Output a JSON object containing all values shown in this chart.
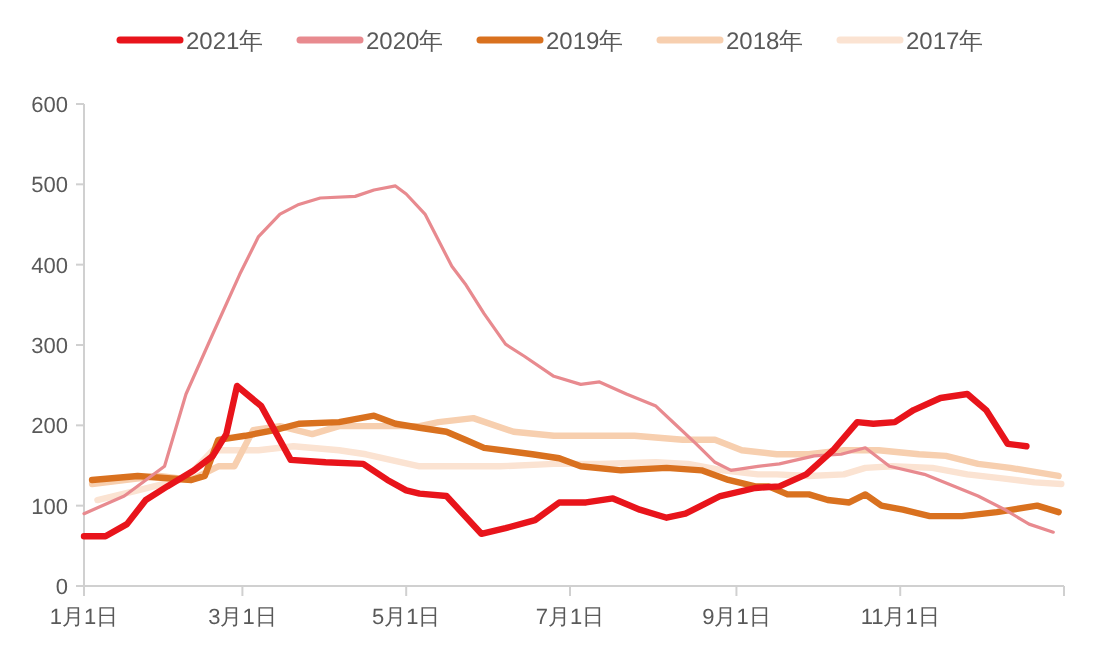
{
  "chart_data": {
    "type": "line",
    "legend": "top",
    "ylim": [
      0,
      600
    ],
    "yticks": [
      0,
      100,
      200,
      300,
      400,
      500,
      600
    ],
    "xlim": [
      "--01-01",
      "--12-31"
    ],
    "xticks": [
      {
        "value": "--01-01",
        "label": "1月1日"
      },
      {
        "value": "--03-01",
        "label": "3月1日"
      },
      {
        "value": "--05-01",
        "label": "5月1日"
      },
      {
        "value": "--07-01",
        "label": "7月1日"
      },
      {
        "value": "--09-01",
        "label": "9月1日"
      },
      {
        "value": "--11-01",
        "label": "11月1日"
      }
    ],
    "series": [
      {
        "name": "2021年",
        "color": "#e8141b",
        "x": [
          "--01-01",
          "--01-09",
          "--01-17",
          "--01-24",
          "--02-01",
          "--02-11",
          "--02-18",
          "--02-23",
          "--02-27",
          "--03-08",
          "--03-19",
          "--04-01",
          "--04-15",
          "--04-24",
          "--05-01",
          "--05-06",
          "--05-16",
          "--05-29",
          "--06-07",
          "--06-18",
          "--06-27",
          "--07-07",
          "--07-17",
          "--07-27",
          "--08-06",
          "--08-13",
          "--08-26",
          "--09-08",
          "--09-17",
          "--09-27",
          "--10-07",
          "--10-16",
          "--10-22",
          "--10-30",
          "--11-06",
          "--11-16",
          "--11-26",
          "--12-03",
          "--12-11",
          "--12-18"
        ],
        "values": [
          62,
          62,
          77,
          107,
          124,
          144,
          162,
          189,
          249,
          224,
          157,
          154,
          152,
          132,
          119,
          115,
          112,
          65,
          72,
          82,
          104,
          104,
          109,
          95,
          85,
          90,
          112,
          122,
          124,
          139,
          169,
          204,
          202,
          204,
          219,
          234,
          239,
          219,
          177,
          174
        ]
      },
      {
        "name": "2020年",
        "color": "#e88a8f",
        "x": [
          "--01-01",
          "--01-16",
          "--01-31",
          "--02-08",
          "--02-18",
          "--02-28",
          "--03-07",
          "--03-15",
          "--03-22",
          "--03-30",
          "--04-12",
          "--04-19",
          "--04-27",
          "--05-01",
          "--05-08",
          "--05-18",
          "--05-23",
          "--05-30",
          "--06-07",
          "--06-14",
          "--06-25",
          "--07-05",
          "--07-12",
          "--07-22",
          "--08-02",
          "--08-09",
          "--08-17",
          "--08-24",
          "--08-30",
          "--09-09",
          "--09-17",
          "--09-30",
          "--10-10",
          "--10-19",
          "--10-28",
          "--11-10",
          "--11-19",
          "--11-30",
          "--12-10",
          "--12-19",
          "--12-28"
        ],
        "values": [
          90,
          112,
          149,
          239,
          314,
          388,
          435,
          463,
          475,
          483,
          485,
          493,
          498,
          488,
          463,
          398,
          376,
          339,
          301,
          286,
          261,
          251,
          254,
          239,
          224,
          202,
          177,
          154,
          144,
          149,
          152,
          162,
          164,
          172,
          149,
          139,
          127,
          112,
          95,
          77,
          67
        ]
      },
      {
        "name": "2019年",
        "color": "#d9711f",
        "x": [
          "--01-04",
          "--01-21",
          "--02-10",
          "--02-15",
          "--02-20",
          "--03-02",
          "--03-13",
          "--03-22",
          "--04-06",
          "--04-19",
          "--04-27",
          "--05-06",
          "--05-16",
          "--05-23",
          "--05-30",
          "--06-17",
          "--06-27",
          "--07-05",
          "--07-20",
          "--08-06",
          "--08-19",
          "--08-29",
          "--09-08",
          "--09-13",
          "--09-20",
          "--09-28",
          "--10-05",
          "--10-13",
          "--10-19",
          "--10-25",
          "--11-02",
          "--11-12",
          "--11-24",
          "--12-07",
          "--12-22",
          "--12-30"
        ],
        "values": [
          132,
          137,
          132,
          137,
          182,
          187,
          194,
          202,
          204,
          212,
          202,
          197,
          192,
          182,
          172,
          164,
          159,
          149,
          144,
          147,
          144,
          132,
          124,
          124,
          114,
          114,
          107,
          104,
          114,
          100,
          95,
          87,
          87,
          92,
          100,
          92
        ]
      },
      {
        "name": "2018年",
        "color": "#f7cfaf",
        "x": [
          "--01-04",
          "--01-29",
          "--02-10",
          "--02-20",
          "--02-26",
          "--03-05",
          "--03-15",
          "--03-27",
          "--04-06",
          "--04-19",
          "--05-06",
          "--05-13",
          "--05-26",
          "--06-10",
          "--06-25",
          "--07-12",
          "--07-25",
          "--08-12",
          "--08-24",
          "--09-03",
          "--09-16",
          "--09-28",
          "--10-11",
          "--10-24",
          "--11-08",
          "--11-18",
          "--11-30",
          "--12-12",
          "--12-30"
        ],
        "values": [
          127,
          137,
          132,
          149,
          149,
          194,
          199,
          189,
          199,
          199,
          199,
          204,
          209,
          192,
          187,
          187,
          187,
          182,
          182,
          169,
          164,
          164,
          169,
          169,
          164,
          162,
          152,
          147,
          137
        ]
      },
      {
        "name": "2017年",
        "color": "#fbe3d2",
        "x": [
          "--01-06",
          "--01-21",
          "--02-08",
          "--02-18",
          "--03-07",
          "--03-20",
          "--04-06",
          "--04-16",
          "--05-06",
          "--05-11",
          "--06-05",
          "--06-25",
          "--07-12",
          "--08-02",
          "--08-14",
          "--08-27",
          "--09-09",
          "--09-16",
          "--09-28",
          "--10-11",
          "--10-19",
          "--10-29",
          "--11-13",
          "--11-26",
          "--12-09",
          "--12-21",
          "--12-31"
        ],
        "values": [
          107,
          119,
          134,
          169,
          169,
          174,
          169,
          164,
          149,
          149,
          149,
          152,
          152,
          154,
          152,
          144,
          139,
          139,
          137,
          139,
          147,
          149,
          147,
          139,
          134,
          129,
          127
        ]
      }
    ]
  }
}
